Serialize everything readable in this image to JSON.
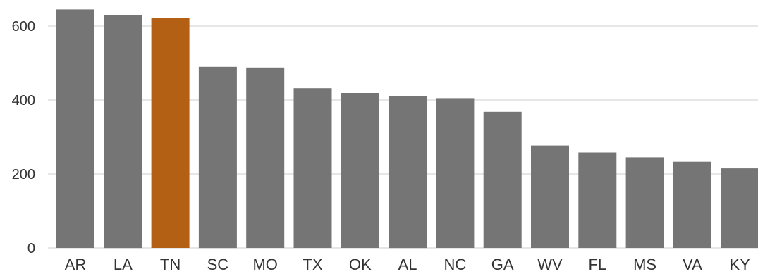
{
  "chart_data": {
    "type": "bar",
    "title": "",
    "xlabel": "",
    "ylabel": "",
    "categories": [
      "AR",
      "LA",
      "TN",
      "SC",
      "MO",
      "TX",
      "OK",
      "AL",
      "NC",
      "GA",
      "WV",
      "FL",
      "MS",
      "VA",
      "KY"
    ],
    "values": [
      645,
      630,
      622,
      490,
      488,
      432,
      419,
      410,
      405,
      368,
      277,
      258,
      245,
      233,
      215
    ],
    "highlight": "TN",
    "colors": {
      "default_bar": "#757575",
      "highlight_bar": "#b35f14",
      "grid": "#e6e6e6",
      "text": "#333333"
    },
    "y_ticks": [
      0,
      200,
      400,
      600
    ],
    "ylim": [
      0,
      650
    ],
    "grid": true,
    "legend": "none"
  }
}
